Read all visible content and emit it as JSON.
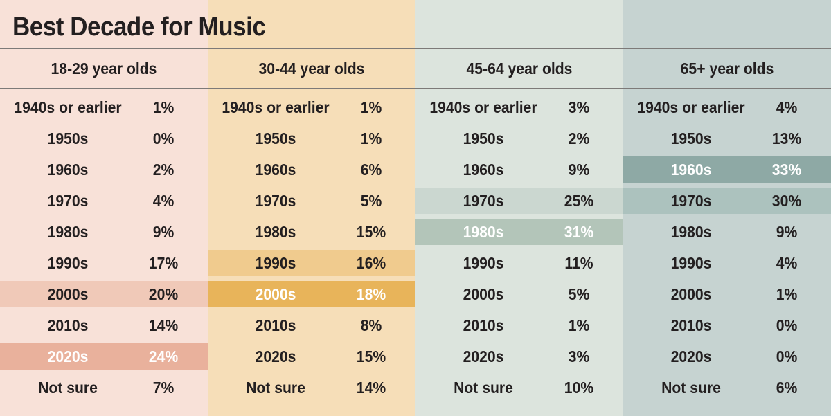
{
  "title": "Best Decade for Music",
  "colors": {
    "col_bg": [
      "#f8e1d8",
      "#f6deb8",
      "#dce4dd",
      "#c6d3d1"
    ],
    "highlight_light": [
      "#f0c9b8",
      "#f0cb8e",
      "#cbd7d0",
      "#acc2be"
    ],
    "highlight_dark": [
      "#e9b19c",
      "#e8b45a",
      "#b3c5b9",
      "#8ea9a5"
    ],
    "text": "#231f20",
    "highlight_text": "#ffffff"
  },
  "chart_data": {
    "type": "table",
    "title": "Best Decade for Music",
    "categories": [
      "1940s or earlier",
      "1950s",
      "1960s",
      "1970s",
      "1980s",
      "1990s",
      "2000s",
      "2010s",
      "2020s",
      "Not sure"
    ],
    "series": [
      {
        "name": "18-29 year olds",
        "values": [
          1,
          0,
          2,
          4,
          9,
          17,
          20,
          14,
          24,
          7
        ]
      },
      {
        "name": "30-44 year olds",
        "values": [
          1,
          1,
          6,
          5,
          15,
          16,
          18,
          8,
          15,
          14
        ]
      },
      {
        "name": "45-64 year olds",
        "values": [
          3,
          2,
          9,
          25,
          31,
          11,
          5,
          1,
          3,
          10
        ]
      },
      {
        "name": "65+ year olds",
        "values": [
          4,
          13,
          33,
          30,
          9,
          4,
          1,
          0,
          0,
          6
        ]
      }
    ],
    "unit": "%",
    "highlights": [
      {
        "series": 0,
        "top": [
          "2020s"
        ],
        "second": [
          "2000s"
        ]
      },
      {
        "series": 1,
        "top": [
          "2000s"
        ],
        "second": [
          "1990s"
        ]
      },
      {
        "series": 2,
        "top": [
          "1980s"
        ],
        "second": [
          "1970s"
        ]
      },
      {
        "series": 3,
        "top": [
          "1960s"
        ],
        "second": [
          "1970s"
        ]
      }
    ]
  },
  "columns": [
    {
      "header": "18-29 year olds",
      "rows": [
        {
          "cat": "1940s or earlier",
          "val": "1%",
          "hl": ""
        },
        {
          "cat": "1950s",
          "val": "0%",
          "hl": ""
        },
        {
          "cat": "1960s",
          "val": "2%",
          "hl": ""
        },
        {
          "cat": "1970s",
          "val": "4%",
          "hl": ""
        },
        {
          "cat": "1980s",
          "val": "9%",
          "hl": ""
        },
        {
          "cat": "1990s",
          "val": "17%",
          "hl": ""
        },
        {
          "cat": "2000s",
          "val": "20%",
          "hl": "light"
        },
        {
          "cat": "2010s",
          "val": "14%",
          "hl": ""
        },
        {
          "cat": "2020s",
          "val": "24%",
          "hl": "dark"
        },
        {
          "cat": "Not sure",
          "val": "7%",
          "hl": ""
        }
      ]
    },
    {
      "header": "30-44 year olds",
      "rows": [
        {
          "cat": "1940s or earlier",
          "val": "1%",
          "hl": ""
        },
        {
          "cat": "1950s",
          "val": "1%",
          "hl": ""
        },
        {
          "cat": "1960s",
          "val": "6%",
          "hl": ""
        },
        {
          "cat": "1970s",
          "val": "5%",
          "hl": ""
        },
        {
          "cat": "1980s",
          "val": "15%",
          "hl": ""
        },
        {
          "cat": "1990s",
          "val": "16%",
          "hl": "light"
        },
        {
          "cat": "2000s",
          "val": "18%",
          "hl": "dark"
        },
        {
          "cat": "2010s",
          "val": "8%",
          "hl": ""
        },
        {
          "cat": "2020s",
          "val": "15%",
          "hl": ""
        },
        {
          "cat": "Not sure",
          "val": "14%",
          "hl": ""
        }
      ]
    },
    {
      "header": "45-64 year olds",
      "rows": [
        {
          "cat": "1940s or earlier",
          "val": "3%",
          "hl": ""
        },
        {
          "cat": "1950s",
          "val": "2%",
          "hl": ""
        },
        {
          "cat": "1960s",
          "val": "9%",
          "hl": ""
        },
        {
          "cat": "1970s",
          "val": "25%",
          "hl": "light"
        },
        {
          "cat": "1980s",
          "val": "31%",
          "hl": "dark"
        },
        {
          "cat": "1990s",
          "val": "11%",
          "hl": ""
        },
        {
          "cat": "2000s",
          "val": "5%",
          "hl": ""
        },
        {
          "cat": "2010s",
          "val": "1%",
          "hl": ""
        },
        {
          "cat": "2020s",
          "val": "3%",
          "hl": ""
        },
        {
          "cat": "Not sure",
          "val": "10%",
          "hl": ""
        }
      ]
    },
    {
      "header": "65+ year olds",
      "rows": [
        {
          "cat": "1940s or earlier",
          "val": "4%",
          "hl": ""
        },
        {
          "cat": "1950s",
          "val": "13%",
          "hl": ""
        },
        {
          "cat": "1960s",
          "val": "33%",
          "hl": "dark"
        },
        {
          "cat": "1970s",
          "val": "30%",
          "hl": "light"
        },
        {
          "cat": "1980s",
          "val": "9%",
          "hl": ""
        },
        {
          "cat": "1990s",
          "val": "4%",
          "hl": ""
        },
        {
          "cat": "2000s",
          "val": "1%",
          "hl": ""
        },
        {
          "cat": "2010s",
          "val": "0%",
          "hl": ""
        },
        {
          "cat": "2020s",
          "val": "0%",
          "hl": ""
        },
        {
          "cat": "Not sure",
          "val": "6%",
          "hl": ""
        }
      ]
    }
  ]
}
